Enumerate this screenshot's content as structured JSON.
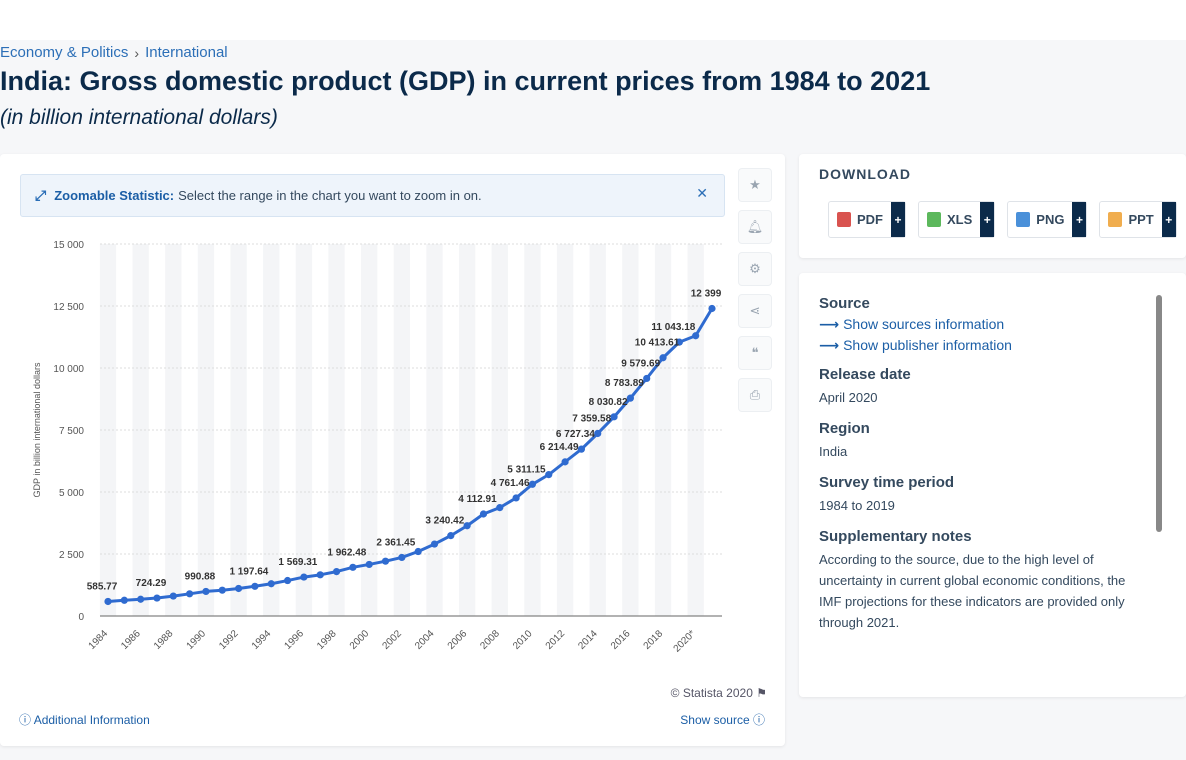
{
  "breadcrumb": {
    "item1": "Economy & Politics",
    "item2": "International"
  },
  "title": "India: Gross domestic product (GDP) in current prices from 1984 to 2021",
  "subtitle": "(in billion international dollars)",
  "zoom": {
    "label": "Zoomable Statistic:",
    "text": "Select the range in the chart you want to zoom in on."
  },
  "footer": {
    "copyright": "© Statista 2020",
    "additional": "Additional Information",
    "show_source": "Show source"
  },
  "download": {
    "title": "DOWNLOAD",
    "buttons": [
      {
        "label": "PDF",
        "color": "#d9534f"
      },
      {
        "label": "XLS",
        "color": "#5cb85c"
      },
      {
        "label": "PNG",
        "color": "#4a90d9"
      },
      {
        "label": "PPT",
        "color": "#f0ad4e"
      }
    ]
  },
  "info": {
    "source_heading": "Source",
    "show_sources": "Show sources information",
    "show_publisher": "Show publisher information",
    "release_heading": "Release date",
    "release_value": "April 2020",
    "region_heading": "Region",
    "region_value": "India",
    "survey_heading": "Survey time period",
    "survey_value": "1984 to 2019",
    "notes_heading": "Supplementary notes",
    "notes_value": "According to the source, due to the high level of uncertainty in current global economic conditions, the IMF projections for these indicators are provided only through 2021."
  },
  "chart_data": {
    "type": "line",
    "title": "",
    "xlabel": "",
    "ylabel": "GDP in billion international dollars",
    "ylim": [
      0,
      15000
    ],
    "yticks": [
      0,
      2500,
      5000,
      7500,
      10000,
      12500,
      15000
    ],
    "ytick_labels": [
      "0",
      "2 500",
      "5 000",
      "7 500",
      "10 000",
      "12 500",
      "15 000"
    ],
    "xtick_labels": [
      "1984",
      "1986",
      "1988",
      "1990",
      "1992",
      "1994",
      "1996",
      "1998",
      "2000",
      "2002",
      "2004",
      "2006",
      "2008",
      "2010",
      "2012",
      "2014",
      "2016",
      "2018",
      "2020*"
    ],
    "color": "#2f6bd0",
    "grid": true,
    "x": [
      1984,
      1985,
      1986,
      1987,
      1988,
      1989,
      1990,
      1991,
      1992,
      1993,
      1994,
      1995,
      1996,
      1997,
      1998,
      1999,
      2000,
      2001,
      2002,
      2003,
      2004,
      2005,
      2006,
      2007,
      2008,
      2009,
      2010,
      2011,
      2012,
      2013,
      2014,
      2015,
      2016,
      2017,
      2018,
      2019,
      2020,
      2021
    ],
    "values": [
      585.77,
      634,
      675,
      724.29,
      803,
      895,
      990.88,
      1040,
      1110,
      1197.64,
      1300,
      1430,
      1569.31,
      1660,
      1790,
      1962.48,
      2080,
      2210,
      2361.45,
      2600,
      2900,
      3240.42,
      3640,
      4112.91,
      4370,
      4761.46,
      5311.15,
      5700,
      6214.49,
      6727.34,
      7359.58,
      8030.82,
      8783.89,
      9579.69,
      10413.61,
      11043.18,
      11300,
      12399
    ],
    "labels": [
      {
        "year": 1984,
        "text": "585.77"
      },
      {
        "year": 1987,
        "text": "724.29"
      },
      {
        "year": 1990,
        "text": "990.88"
      },
      {
        "year": 1993,
        "text": "1 197.64"
      },
      {
        "year": 1996,
        "text": "1 569.31"
      },
      {
        "year": 1999,
        "text": "1 962.48"
      },
      {
        "year": 2002,
        "text": "2 361.45"
      },
      {
        "year": 2005,
        "text": "3 240.42"
      },
      {
        "year": 2007,
        "text": "4 112.91"
      },
      {
        "year": 2009,
        "text": "4 761.46"
      },
      {
        "year": 2010,
        "text": "5 311.15"
      },
      {
        "year": 2012,
        "text": "6 214.49"
      },
      {
        "year": 2013,
        "text": "6 727.34"
      },
      {
        "year": 2014,
        "text": "7 359.58"
      },
      {
        "year": 2015,
        "text": "8 030.82"
      },
      {
        "year": 2016,
        "text": "8 783.89"
      },
      {
        "year": 2017,
        "text": "9 579.69"
      },
      {
        "year": 2018,
        "text": "10 413.61"
      },
      {
        "year": 2019,
        "text": "11 043.18"
      },
      {
        "year": 2021,
        "text": "12 399"
      }
    ]
  }
}
